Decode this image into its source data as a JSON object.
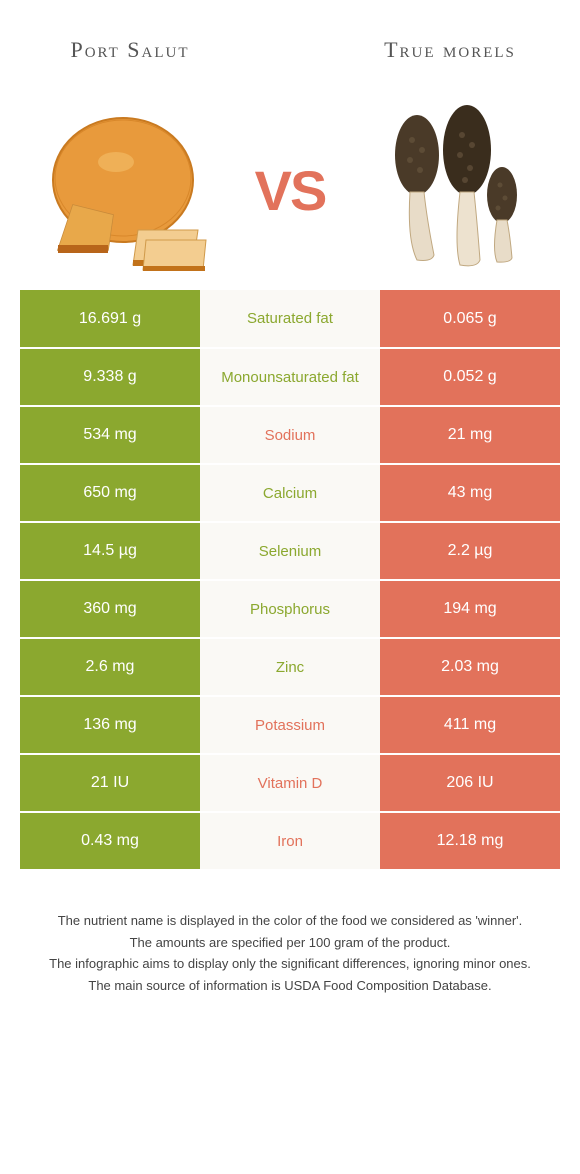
{
  "colors": {
    "left": "#8ba82f",
    "right": "#e2725b",
    "mid_bg": "#faf9f5",
    "row_border": "#ffffff",
    "vs": "#e2725b"
  },
  "header": {
    "left_title": "Port Salut",
    "right_title": "True morels",
    "vs_label": "VS"
  },
  "rows": [
    {
      "left": "16.691 g",
      "label": "Saturated fat",
      "right": "0.065 g",
      "winner": "left"
    },
    {
      "left": "9.338 g",
      "label": "Monounsaturated fat",
      "right": "0.052 g",
      "winner": "left"
    },
    {
      "left": "534 mg",
      "label": "Sodium",
      "right": "21 mg",
      "winner": "right"
    },
    {
      "left": "650 mg",
      "label": "Calcium",
      "right": "43 mg",
      "winner": "left"
    },
    {
      "left": "14.5 µg",
      "label": "Selenium",
      "right": "2.2 µg",
      "winner": "left"
    },
    {
      "left": "360 mg",
      "label": "Phosphorus",
      "right": "194 mg",
      "winner": "left"
    },
    {
      "left": "2.6 mg",
      "label": "Zinc",
      "right": "2.03 mg",
      "winner": "left"
    },
    {
      "left": "136 mg",
      "label": "Potassium",
      "right": "411 mg",
      "winner": "right"
    },
    {
      "left": "21 IU",
      "label": "Vitamin D",
      "right": "206 IU",
      "winner": "right"
    },
    {
      "left": "0.43 mg",
      "label": "Iron",
      "right": "12.18 mg",
      "winner": "right"
    }
  ],
  "footer": {
    "line1": "The nutrient name is displayed in the color of the food we considered as 'winner'.",
    "line2": "The amounts are specified per 100 gram of the product.",
    "line3": "The infographic aims to display only the significant differences, ignoring minor ones.",
    "line4": "The main source of information is USDA Food Composition Database."
  }
}
